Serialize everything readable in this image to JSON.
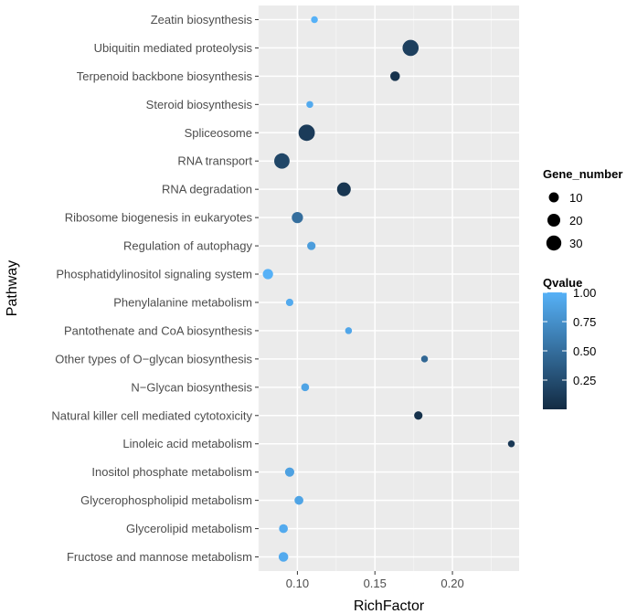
{
  "chart_data": {
    "type": "scatter",
    "title": "",
    "xlabel": "RichFactor",
    "ylabel": "Pathway",
    "xlim": [
      0.075,
      0.243
    ],
    "x_ticks": [
      "0.10",
      "0.15",
      "0.20"
    ],
    "grid": true,
    "categories": [
      "Fructose and mannose metabolism",
      "Glycerolipid metabolism",
      "Glycerophospholipid metabolism",
      "Inositol phosphate metabolism",
      "Linoleic acid metabolism",
      "Natural killer cell mediated cytotoxicity",
      "N−Glycan biosynthesis",
      "Other types of O−glycan biosynthesis",
      "Pantothenate and CoA biosynthesis",
      "Phenylalanine metabolism",
      "Phosphatidylinositol signaling system",
      "Regulation of autophagy",
      "Ribosome biogenesis in eukaryotes",
      "RNA degradation",
      "RNA transport",
      "Spliceosome",
      "Steroid biosynthesis",
      "Terpenoid backbone biosynthesis",
      "Ubiquitin mediated proteolysis",
      "Zeatin biosynthesis"
    ],
    "points": [
      {
        "pathway": "Fructose and mannose metabolism",
        "rich_factor": 0.091,
        "gene_number": 9,
        "qvalue": 0.95
      },
      {
        "pathway": "Glycerolipid metabolism",
        "rich_factor": 0.091,
        "gene_number": 7,
        "qvalue": 0.95
      },
      {
        "pathway": "Glycerophospholipid metabolism",
        "rich_factor": 0.101,
        "gene_number": 7,
        "qvalue": 0.9
      },
      {
        "pathway": "Inositol phosphate metabolism",
        "rich_factor": 0.095,
        "gene_number": 8,
        "qvalue": 0.88
      },
      {
        "pathway": "Linoleic acid metabolism",
        "rich_factor": 0.238,
        "gene_number": 3,
        "qvalue": 0.1
      },
      {
        "pathway": "Natural killer cell mediated cytotoxicity",
        "rich_factor": 0.178,
        "gene_number": 6,
        "qvalue": 0.05
      },
      {
        "pathway": "N−Glycan biosynthesis",
        "rich_factor": 0.105,
        "gene_number": 5,
        "qvalue": 0.9
      },
      {
        "pathway": "Other types of O−glycan biosynthesis",
        "rich_factor": 0.182,
        "gene_number": 3,
        "qvalue": 0.45
      },
      {
        "pathway": "Pantothenate and CoA biosynthesis",
        "rich_factor": 0.133,
        "gene_number": 3,
        "qvalue": 0.92
      },
      {
        "pathway": "Phenylalanine metabolism",
        "rich_factor": 0.095,
        "gene_number": 4,
        "qvalue": 0.95
      },
      {
        "pathway": "Phosphatidylinositol signaling system",
        "rich_factor": 0.081,
        "gene_number": 11,
        "qvalue": 1.0
      },
      {
        "pathway": "Regulation of autophagy",
        "rich_factor": 0.109,
        "gene_number": 6,
        "qvalue": 0.85
      },
      {
        "pathway": "Ribosome biogenesis in eukaryotes",
        "rich_factor": 0.1,
        "gene_number": 14,
        "qvalue": 0.5
      },
      {
        "pathway": "RNA degradation",
        "rich_factor": 0.13,
        "gene_number": 24,
        "qvalue": 0.08
      },
      {
        "pathway": "RNA transport",
        "rich_factor": 0.09,
        "gene_number": 32,
        "qvalue": 0.2
      },
      {
        "pathway": "Spliceosome",
        "rich_factor": 0.106,
        "gene_number": 37,
        "qvalue": 0.12
      },
      {
        "pathway": "Steroid biosynthesis",
        "rich_factor": 0.108,
        "gene_number": 3,
        "qvalue": 0.95
      },
      {
        "pathway": "Terpenoid backbone biosynthesis",
        "rich_factor": 0.163,
        "gene_number": 9,
        "qvalue": 0.05
      },
      {
        "pathway": "Ubiquitin mediated proteolysis",
        "rich_factor": 0.173,
        "gene_number": 36,
        "qvalue": 0.15
      },
      {
        "pathway": "Zeatin biosynthesis",
        "rich_factor": 0.111,
        "gene_number": 3,
        "qvalue": 1.0
      }
    ],
    "legend_size": {
      "title": "Gene_number",
      "entries": [
        {
          "label": "10",
          "value": 10
        },
        {
          "label": "20",
          "value": 20
        },
        {
          "label": "30",
          "value": 30
        }
      ]
    },
    "legend_color": {
      "title": "Qvalue",
      "range": [
        0.0,
        1.0
      ],
      "ticks": [
        {
          "label": "1.00",
          "value": 1.0
        },
        {
          "label": "0.75",
          "value": 0.75
        },
        {
          "label": "0.50",
          "value": 0.5
        },
        {
          "label": "0.25",
          "value": 0.25
        }
      ],
      "color_low": "#132b43",
      "color_high": "#56b1f7"
    },
    "colors": {
      "panel_background": "#ebebeb",
      "grid_major": "#ffffff",
      "grid_minor": "#f5f5f5"
    }
  }
}
